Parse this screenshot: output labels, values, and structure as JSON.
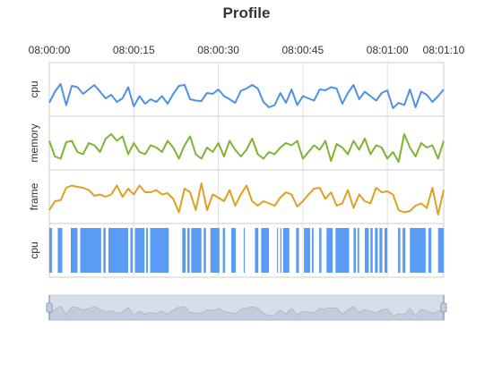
{
  "chart_data": {
    "type": "line",
    "title": "Profile",
    "x_tick_labels": [
      "08:00:00",
      "08:00:15",
      "08:00:30",
      "08:00:45",
      "08:01:00",
      "08:01:10"
    ],
    "x_tick_values": [
      0,
      15,
      30,
      45,
      60,
      70
    ],
    "x_range": [
      0,
      70
    ],
    "grid": true,
    "sample_times": [
      0,
      1,
      2,
      3,
      4,
      5,
      6,
      7,
      8,
      9,
      10,
      11,
      12,
      13,
      14,
      15,
      16,
      17,
      18,
      19,
      20,
      21,
      22,
      23,
      24,
      25,
      26,
      27,
      28,
      29,
      30,
      31,
      32,
      33,
      34,
      35,
      36,
      37,
      38,
      39,
      40,
      41,
      42,
      43,
      44,
      45,
      46,
      47,
      48,
      49,
      50,
      51,
      52,
      53,
      54,
      55,
      56,
      57,
      58,
      59,
      60,
      61,
      62,
      63,
      64,
      65,
      66,
      67,
      68,
      69,
      70
    ],
    "series": [
      {
        "name": "cpu",
        "color": "#5191e3",
        "ylim": [
          0,
          1
        ],
        "values": [
          0.2,
          0.45,
          0.62,
          0.15,
          0.58,
          0.55,
          0.4,
          0.5,
          0.6,
          0.45,
          0.3,
          0.38,
          0.22,
          0.3,
          0.55,
          0.12,
          0.35,
          0.18,
          0.28,
          0.22,
          0.35,
          0.18,
          0.4,
          0.58,
          0.6,
          0.28,
          0.25,
          0.24,
          0.42,
          0.4,
          0.5,
          0.35,
          0.28,
          0.2,
          0.47,
          0.52,
          0.6,
          0.52,
          0.22,
          0.1,
          0.15,
          0.42,
          0.2,
          0.5,
          0.15,
          0.35,
          0.3,
          0.25,
          0.5,
          0.48,
          0.55,
          0.52,
          0.18,
          0.42,
          0.6,
          0.28,
          0.45,
          0.35,
          0.25,
          0.42,
          0.48,
          0.08,
          0.2,
          0.15,
          0.5,
          0.1,
          0.45,
          0.38,
          0.22,
          0.35,
          0.5
        ]
      },
      {
        "name": "memory",
        "color": "#7fb332",
        "ylim": [
          0,
          1
        ],
        "values": [
          0.55,
          0.2,
          0.15,
          0.52,
          0.55,
          0.3,
          0.25,
          0.5,
          0.45,
          0.3,
          0.6,
          0.7,
          0.55,
          0.65,
          0.25,
          0.5,
          0.3,
          0.25,
          0.45,
          0.4,
          0.3,
          0.55,
          0.4,
          0.15,
          0.45,
          0.65,
          0.25,
          0.15,
          0.4,
          0.3,
          0.5,
          0.2,
          0.55,
          0.35,
          0.2,
          0.35,
          0.6,
          0.25,
          0.15,
          0.3,
          0.25,
          0.4,
          0.5,
          0.45,
          0.55,
          0.15,
          0.3,
          0.45,
          0.35,
          0.55,
          0.1,
          0.48,
          0.4,
          0.25,
          0.55,
          0.35,
          0.6,
          0.25,
          0.45,
          0.4,
          0.15,
          0.3,
          0.08,
          0.7,
          0.4,
          0.2,
          0.5,
          0.4,
          0.45,
          0.15,
          0.55
        ]
      },
      {
        "name": "frame",
        "color": "#e0a024",
        "ylim": [
          0,
          1
        ],
        "values": [
          0.2,
          0.4,
          0.42,
          0.7,
          0.75,
          0.72,
          0.7,
          0.65,
          0.52,
          0.55,
          0.5,
          0.55,
          0.75,
          0.5,
          0.68,
          0.55,
          0.75,
          0.6,
          0.6,
          0.65,
          0.55,
          0.58,
          0.45,
          0.15,
          0.68,
          0.6,
          0.2,
          0.8,
          0.2,
          0.55,
          0.48,
          0.4,
          0.65,
          0.3,
          0.55,
          0.75,
          0.4,
          0.3,
          0.4,
          0.35,
          0.3,
          0.48,
          0.6,
          0.55,
          0.28,
          0.4,
          0.55,
          0.68,
          0.7,
          0.45,
          0.6,
          0.3,
          0.35,
          0.65,
          0.25,
          0.55,
          0.4,
          0.35,
          0.7,
          0.6,
          0.62,
          0.55,
          0.2,
          0.15,
          0.18,
          0.3,
          0.35,
          0.25,
          0.7,
          0.1,
          0.65
        ]
      },
      {
        "name": "cpu",
        "type": "bar",
        "color": "#5a9bf5",
        "blocks": [
          [
            0,
            0.5
          ],
          [
            1.5,
            2.3
          ],
          [
            3.8,
            5
          ],
          [
            5.5,
            9.2
          ],
          [
            9.6,
            10
          ],
          [
            10.5,
            14
          ],
          [
            14.4,
            14.8
          ],
          [
            15.2,
            16.9
          ],
          [
            17.2,
            17.5
          ],
          [
            17.9,
            21.2
          ],
          [
            23.6,
            24.2
          ],
          [
            24.5,
            24.9
          ],
          [
            25.2,
            27
          ],
          [
            27.4,
            27.8
          ],
          [
            28.6,
            30.2
          ],
          [
            30.8,
            31.2
          ],
          [
            32.3,
            33.1
          ],
          [
            34.5,
            34.7
          ],
          [
            36.5,
            37.1
          ],
          [
            37.6,
            39
          ],
          [
            40.4,
            40.6
          ],
          [
            41,
            41.2
          ],
          [
            41.5,
            42.6
          ],
          [
            43.8,
            44.3
          ],
          [
            45.2,
            46.3
          ],
          [
            46.6,
            46.9
          ],
          [
            47.9,
            48.3
          ],
          [
            49.2,
            50.3
          ],
          [
            50.8,
            53.2
          ],
          [
            54,
            54.4
          ],
          [
            54.7,
            55
          ],
          [
            56,
            56.7
          ],
          [
            57,
            57.4
          ],
          [
            57.8,
            58.3
          ],
          [
            58.6,
            59.1
          ],
          [
            59.5,
            60
          ],
          [
            61.9,
            62.3
          ],
          [
            62.7,
            63.2
          ],
          [
            64,
            66.8
          ],
          [
            67.3,
            67.8
          ],
          [
            69,
            70
          ]
        ]
      }
    ],
    "overview": {
      "type": "area",
      "color": "#bdc6d3",
      "range": [
        0,
        70
      ]
    }
  }
}
